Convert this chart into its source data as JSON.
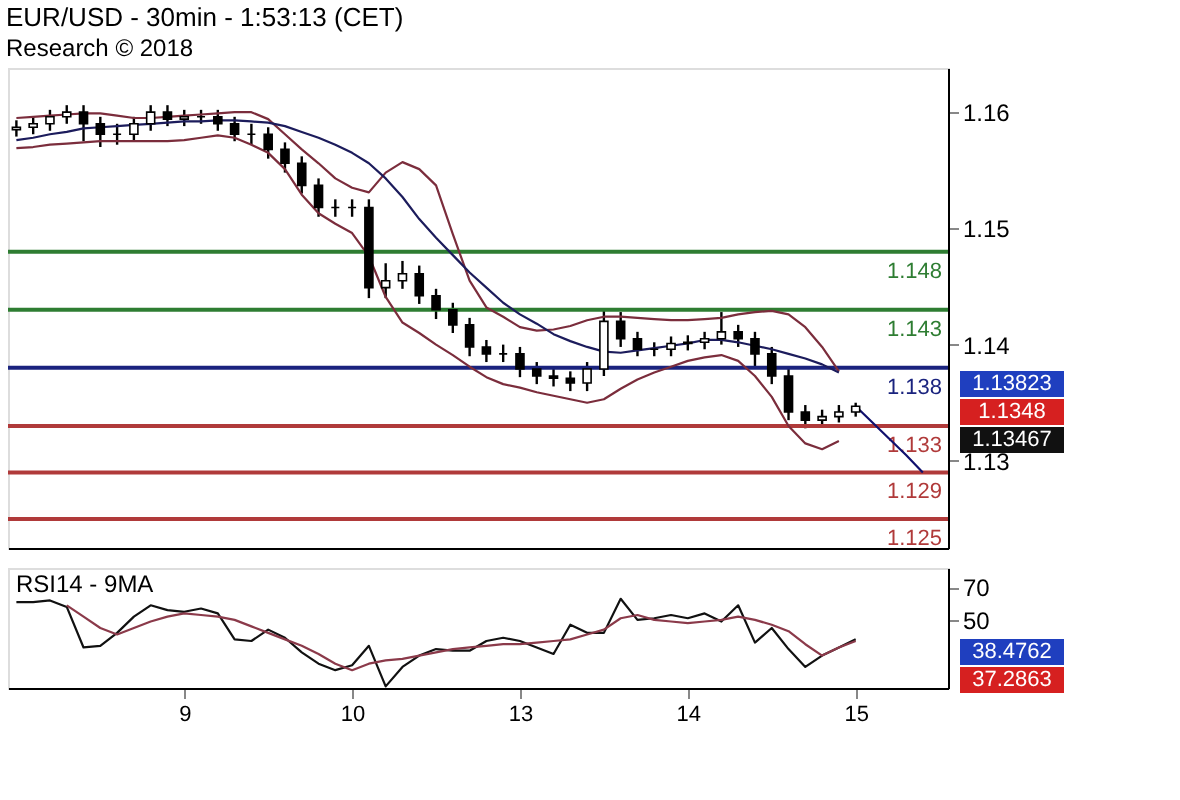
{
  "chart_data": [
    {
      "type": "candlestick",
      "title": "EUR/USD - 30min - 1:53:13 (CET)",
      "subtitle": "Research © 2018",
      "categories": [
        null,
        null,
        null,
        null,
        null,
        null,
        null,
        null,
        null,
        null,
        "9",
        null,
        null,
        null,
        null,
        null,
        null,
        null,
        null,
        null,
        "10",
        null,
        null,
        null,
        null,
        null,
        null,
        null,
        null,
        null,
        "13",
        null,
        null,
        null,
        null,
        null,
        null,
        null,
        null,
        null,
        "14",
        null,
        null,
        null,
        null,
        null,
        null,
        null,
        null,
        null,
        "15",
        null,
        null,
        null,
        null,
        null
      ],
      "ohlc": [
        [
          1.1585,
          1.1593,
          1.1579,
          1.1587
        ],
        [
          1.1587,
          1.1596,
          1.1581,
          1.159
        ],
        [
          1.159,
          1.1602,
          1.1584,
          1.1596
        ],
        [
          1.1596,
          1.1606,
          1.159,
          1.16
        ],
        [
          1.16,
          1.1606,
          1.1575,
          1.159
        ],
        [
          1.159,
          1.1596,
          1.157,
          1.1581
        ],
        [
          1.1581,
          1.159,
          1.1572,
          1.1581
        ],
        [
          1.1581,
          1.1596,
          1.1575,
          1.159
        ],
        [
          1.159,
          1.1606,
          1.1584,
          1.16
        ],
        [
          1.16,
          1.1606,
          1.1588,
          1.1594
        ],
        [
          1.1594,
          1.1602,
          1.1588,
          1.1596
        ],
        [
          1.1596,
          1.1602,
          1.159,
          1.1596
        ],
        [
          1.1596,
          1.1602,
          1.1584,
          1.159
        ],
        [
          1.159,
          1.1596,
          1.1575,
          1.1581
        ],
        [
          1.1581,
          1.159,
          1.1572,
          1.1581
        ],
        [
          1.1581,
          1.1587,
          1.156,
          1.1568
        ],
        [
          1.1568,
          1.1574,
          1.1548,
          1.1556
        ],
        [
          1.1556,
          1.1562,
          1.153,
          1.1537
        ],
        [
          1.1537,
          1.1543,
          1.151,
          1.1518
        ],
        [
          1.1518,
          1.1525,
          1.151,
          1.1518
        ],
        [
          1.1518,
          1.1525,
          1.151,
          1.1518
        ],
        [
          1.1518,
          1.1525,
          1.144,
          1.1449
        ],
        [
          1.1449,
          1.147,
          1.144,
          1.1455
        ],
        [
          1.1455,
          1.1472,
          1.1448,
          1.1461
        ],
        [
          1.1461,
          1.1468,
          1.1435,
          1.1442
        ],
        [
          1.1442,
          1.1448,
          1.1422,
          1.143
        ],
        [
          1.143,
          1.1436,
          1.141,
          1.1417
        ],
        [
          1.1417,
          1.1423,
          1.139,
          1.1398
        ],
        [
          1.1398,
          1.1404,
          1.1385,
          1.1392
        ],
        [
          1.1392,
          1.14,
          1.1385,
          1.1392
        ],
        [
          1.1392,
          1.1398,
          1.1372,
          1.1379
        ],
        [
          1.1379,
          1.1385,
          1.1366,
          1.1373
        ],
        [
          1.1373,
          1.1379,
          1.1364,
          1.1371
        ],
        [
          1.1371,
          1.1377,
          1.136,
          1.1367
        ],
        [
          1.1367,
          1.1385,
          1.136,
          1.1379
        ],
        [
          1.1379,
          1.143,
          1.1373,
          1.142
        ],
        [
          1.142,
          1.1428,
          1.1398,
          1.1405
        ],
        [
          1.1405,
          1.1411,
          1.139,
          1.1396
        ],
        [
          1.1396,
          1.1402,
          1.139,
          1.1396
        ],
        [
          1.1396,
          1.1407,
          1.139,
          1.1401
        ],
        [
          1.1401,
          1.1408,
          1.1395,
          1.1402
        ],
        [
          1.1402,
          1.1411,
          1.1396,
          1.1405
        ],
        [
          1.1405,
          1.1428,
          1.14,
          1.1411
        ],
        [
          1.1411,
          1.1417,
          1.1398,
          1.1405
        ],
        [
          1.1405,
          1.1411,
          1.138,
          1.1392
        ],
        [
          1.1392,
          1.1398,
          1.1366,
          1.1373
        ],
        [
          1.1373,
          1.1379,
          1.1335,
          1.1342
        ],
        [
          1.1342,
          1.1348,
          1.1328,
          1.1335
        ],
        [
          1.1335,
          1.1344,
          1.133,
          1.1338
        ],
        [
          1.1338,
          1.1348,
          1.1333,
          1.1342
        ],
        [
          1.1342,
          1.135,
          1.1338,
          1.1347
        ],
        null,
        null,
        null,
        null,
        null
      ],
      "series": [
        {
          "type": "line",
          "color": "#7b2d3c",
          "values": [
            1.1595,
            1.1596,
            1.1597,
            1.1598,
            1.1599,
            1.1599,
            1.1597,
            1.1595,
            1.1595,
            1.1596,
            1.1597,
            1.1598,
            1.1599,
            1.16,
            1.16,
            1.1594,
            1.1581,
            1.1568,
            1.1556,
            1.1543,
            1.1535,
            1.1531,
            1.1548,
            1.1557,
            1.1551,
            1.1537,
            1.1495,
            1.1455,
            1.1432,
            1.1424,
            1.1415,
            1.1412,
            1.1413,
            1.1416,
            1.1421,
            1.1424,
            1.1424,
            1.1423,
            1.1422,
            1.1421,
            1.1421,
            1.1422,
            1.1423,
            1.1426,
            1.1428,
            1.1429,
            1.1426,
            1.1415,
            1.1398,
            1.1377,
            null,
            null,
            null,
            null,
            null,
            null
          ]
        },
        {
          "type": "line",
          "color": "#7b2d3c",
          "values": [
            1.1569,
            1.157,
            1.1572,
            1.1573,
            1.1574,
            1.1575,
            1.1575,
            1.1575,
            1.1575,
            1.1575,
            1.1576,
            1.1578,
            1.158,
            1.1578,
            1.1572,
            1.1565,
            1.1551,
            1.1529,
            1.1513,
            1.1504,
            1.1496,
            1.1476,
            1.1441,
            1.1419,
            1.141,
            1.14,
            1.1391,
            1.1381,
            1.1372,
            1.1366,
            1.1363,
            1.1359,
            1.1356,
            1.1353,
            1.135,
            1.1353,
            1.1362,
            1.137,
            1.1376,
            1.1381,
            1.1386,
            1.1389,
            1.1391,
            1.1386,
            1.1373,
            1.1355,
            1.133,
            1.1315,
            1.131,
            1.1317,
            null,
            null,
            null,
            null,
            null,
            null
          ]
        },
        {
          "type": "line",
          "color": "#1c1c5c",
          "values": [
            1.1576,
            1.1578,
            1.1581,
            1.1583,
            1.1586,
            1.1587,
            1.1588,
            1.1589,
            1.159,
            1.1591,
            1.1592,
            1.1592,
            1.1593,
            1.1593,
            1.1592,
            1.1591,
            1.1588,
            1.1583,
            1.1578,
            1.1572,
            1.1565,
            1.1556,
            1.1543,
            1.1527,
            1.1508,
            1.1492,
            1.1477,
            1.1462,
            1.1449,
            1.1436,
            1.1426,
            1.1418,
            1.1409,
            1.1403,
            1.1398,
            1.1394,
            1.1393,
            1.1395,
            1.1397,
            1.1399,
            1.1401,
            1.1404,
            1.1404,
            1.1402,
            1.1399,
            1.1396,
            1.1392,
            1.1388,
            1.1383,
            1.1376,
            null,
            null,
            null,
            null,
            null,
            null
          ]
        },
        {
          "type": "line",
          "color": "#10106e",
          "values": [
            null,
            null,
            null,
            null,
            null,
            null,
            null,
            null,
            null,
            null,
            null,
            null,
            null,
            null,
            null,
            null,
            null,
            null,
            null,
            null,
            null,
            null,
            null,
            null,
            null,
            null,
            null,
            null,
            null,
            null,
            null,
            null,
            null,
            null,
            null,
            null,
            null,
            null,
            null,
            null,
            null,
            null,
            null,
            null,
            null,
            null,
            null,
            null,
            null,
            null,
            1.1347,
            1.1333,
            1.1319,
            1.1305,
            1.129,
            null
          ]
        }
      ],
      "ylim": [
        1.1225,
        1.1638
      ],
      "yticks": [
        1.13,
        1.14,
        1.15,
        1.16
      ],
      "tick_labels": "y",
      "ref_lines": [
        {
          "axis": "y",
          "value": 1.148,
          "label": "1.148",
          "color": "#2e7d32"
        },
        {
          "axis": "y",
          "value": 1.143,
          "label": "1.143",
          "color": "#2e7d32"
        },
        {
          "axis": "y",
          "value": 1.138,
          "label": "1.138",
          "color": "#1a237e"
        },
        {
          "axis": "y",
          "value": 1.133,
          "label": "1.133",
          "color": "#b03a3a"
        },
        {
          "axis": "y",
          "value": 1.129,
          "label": "1.129",
          "color": "#b03a3a"
        },
        {
          "axis": "y",
          "value": 1.125,
          "label": "1.125",
          "color": "#b03a3a"
        }
      ],
      "annotations": [
        "1.13823",
        "1.1348",
        "1.13467"
      ]
    },
    {
      "type": "line",
      "title": "RSI14 - 9MA",
      "categories": [
        null,
        null,
        null,
        null,
        null,
        null,
        null,
        null,
        null,
        null,
        "9",
        null,
        null,
        null,
        null,
        null,
        null,
        null,
        null,
        null,
        "10",
        null,
        null,
        null,
        null,
        null,
        null,
        null,
        null,
        null,
        "13",
        null,
        null,
        null,
        null,
        null,
        null,
        null,
        null,
        null,
        "14",
        null,
        null,
        null,
        null,
        null,
        null,
        null,
        null,
        null,
        "15",
        null,
        null,
        null,
        null,
        null
      ],
      "series": [
        {
          "color": "#111111",
          "values": [
            61,
            61,
            62,
            58,
            33,
            34,
            42,
            52,
            59,
            56,
            55,
            57,
            54,
            38,
            37,
            44,
            39,
            30,
            23,
            19,
            22,
            34,
            9,
            21,
            28,
            32,
            31,
            31,
            37,
            39,
            37,
            33,
            29,
            47,
            42,
            42,
            63,
            50,
            51,
            53,
            51,
            54,
            49,
            59,
            36,
            45,
            32,
            21,
            28,
            33,
            38,
            null,
            null,
            null,
            null,
            null
          ]
        },
        {
          "color": "#8b3a4a",
          "values": [
            null,
            null,
            null,
            59,
            52,
            45,
            41,
            45,
            49,
            52,
            54,
            53,
            52,
            50,
            46,
            42,
            38,
            34,
            29,
            23,
            19,
            23,
            25,
            26,
            28,
            30,
            32,
            33,
            34,
            35,
            35,
            36,
            37,
            38,
            41,
            44,
            51,
            53,
            50,
            49,
            48,
            49,
            50,
            52,
            50,
            47,
            43,
            35,
            28,
            33,
            37,
            null,
            null,
            null,
            null,
            null
          ]
        }
      ],
      "ylim": [
        8,
        82
      ],
      "yticks": [
        50,
        70
      ],
      "annotations": [
        "38.4762",
        "37.2863"
      ]
    }
  ]
}
